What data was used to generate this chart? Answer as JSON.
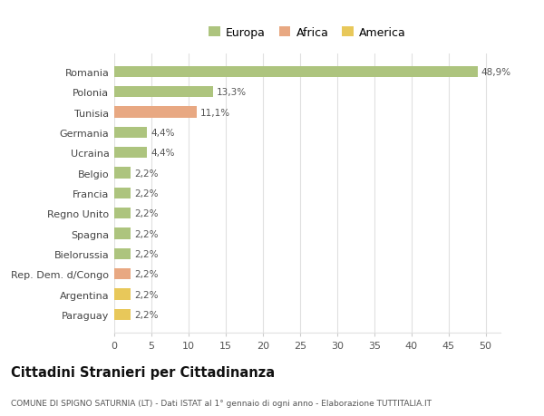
{
  "countries": [
    "Romania",
    "Polonia",
    "Tunisia",
    "Germania",
    "Ucraina",
    "Belgio",
    "Francia",
    "Regno Unito",
    "Spagna",
    "Bielorussia",
    "Rep. Dem. d/Congo",
    "Argentina",
    "Paraguay"
  ],
  "values": [
    48.9,
    13.3,
    11.1,
    4.4,
    4.4,
    2.2,
    2.2,
    2.2,
    2.2,
    2.2,
    2.2,
    2.2,
    2.2
  ],
  "labels": [
    "48,9%",
    "13,3%",
    "11,1%",
    "4,4%",
    "4,4%",
    "2,2%",
    "2,2%",
    "2,2%",
    "2,2%",
    "2,2%",
    "2,2%",
    "2,2%",
    "2,2%"
  ],
  "categories": [
    "Europa",
    "Africa",
    "America"
  ],
  "bar_colors": [
    "#adc47e",
    "#adc47e",
    "#e8a882",
    "#adc47e",
    "#adc47e",
    "#adc47e",
    "#adc47e",
    "#adc47e",
    "#adc47e",
    "#adc47e",
    "#e8a882",
    "#e8c85a",
    "#e8c85a"
  ],
  "legend_colors": [
    "#adc47e",
    "#e8a882",
    "#e8c85a"
  ],
  "title": "Cittadini Stranieri per Cittadinanza",
  "subtitle": "COMUNE DI SPIGNO SATURNIA (LT) - Dati ISTAT al 1° gennaio di ogni anno - Elaborazione TUTTITALIA.IT",
  "xlim": [
    0,
    52
  ],
  "xticks": [
    0,
    5,
    10,
    15,
    20,
    25,
    30,
    35,
    40,
    45,
    50
  ],
  "background_color": "#ffffff",
  "grid_color": "#e0e0e0",
  "bar_height": 0.55
}
